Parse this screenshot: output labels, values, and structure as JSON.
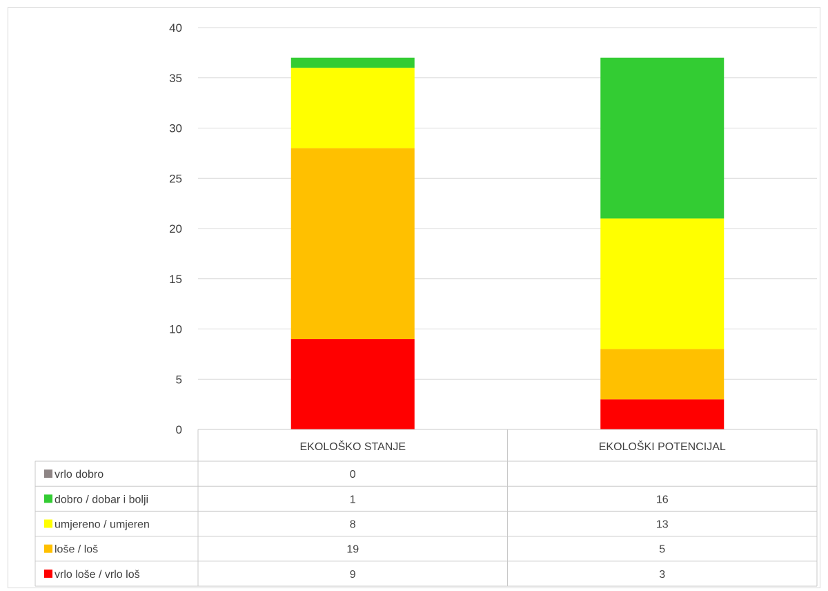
{
  "chart_data": {
    "type": "bar",
    "stacked": true,
    "categories": [
      "EKOLOŠKO STANJE",
      "EKOLOŠKI POTENCIJAL"
    ],
    "series": [
      {
        "name": "vrlo dobro",
        "color": "#8e8585",
        "values": [
          0,
          null
        ],
        "labels": [
          "0",
          ""
        ]
      },
      {
        "name": "dobro / dobar i bolji",
        "color": "#33cc33",
        "values": [
          1,
          16
        ],
        "labels": [
          "1",
          "16"
        ]
      },
      {
        "name": "umjereno / umjeren",
        "color": "#ffff00",
        "values": [
          8,
          13
        ],
        "labels": [
          "8",
          "13"
        ]
      },
      {
        "name": "loše / loš",
        "color": "#ffc000",
        "values": [
          19,
          5
        ],
        "labels": [
          "19",
          "5"
        ]
      },
      {
        "name": "vrlo loše / vrlo loš",
        "color": "#ff0000",
        "values": [
          9,
          3
        ],
        "labels": [
          "9",
          "3"
        ]
      }
    ],
    "stack_order_bottom_to_top": [
      "vrlo loše / vrlo loš",
      "loše / loš",
      "umjereno / umjeren",
      "dobro / dobar i bolji",
      "vrlo dobro"
    ],
    "ylim": [
      0,
      40
    ],
    "yticks": [
      "0",
      "5",
      "10",
      "15",
      "20",
      "25",
      "30",
      "35",
      "40"
    ],
    "grid": true,
    "legend": "data-table-below",
    "title": "",
    "xlabel": "",
    "ylabel": ""
  }
}
